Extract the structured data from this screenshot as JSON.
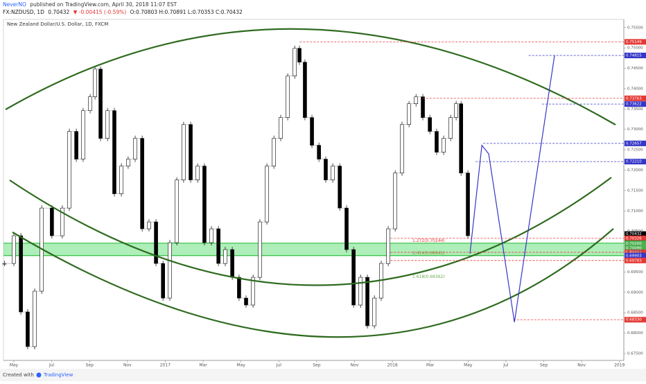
{
  "header": {
    "author": "NeverNO",
    "published": "published on TradingView.com, April 30, 2018 11:07 EST",
    "symbol": "FX:NZDUSD, 1D",
    "last": "0.70432",
    "change": "▼ -0.00415 (-0.59%)",
    "ohlc": "O:0.70803 H:0.70891 L:0.70353 C:0.70432"
  },
  "footer": {
    "created": "Created with",
    "brand": "TradingView"
  },
  "chart_data": {
    "type": "candlestick",
    "title": "New Zealand Dollar/U.S. Dollar, 1D, FXCM",
    "xlim": [
      -0.55,
      32.23
    ],
    "ylim": [
      0.6733,
      0.757
    ],
    "xticks": [
      {
        "value": 0,
        "label": "May"
      },
      {
        "value": 2,
        "label": "Jul"
      },
      {
        "value": 4,
        "label": "Sep"
      },
      {
        "value": 6,
        "label": "Nov"
      },
      {
        "value": 8,
        "label": "2017"
      },
      {
        "value": 10,
        "label": "Mar"
      },
      {
        "value": 12,
        "label": "May"
      },
      {
        "value": 14,
        "label": "Jul"
      },
      {
        "value": 16,
        "label": "Sep"
      },
      {
        "value": 18,
        "label": "Nov"
      },
      {
        "value": 20,
        "label": "2018"
      },
      {
        "value": 22,
        "label": "Mar"
      },
      {
        "value": 24,
        "label": "May"
      },
      {
        "value": 26,
        "label": "Jul"
      },
      {
        "value": 28,
        "label": "Sep"
      },
      {
        "value": 30,
        "label": "Nov"
      },
      {
        "value": 32,
        "label": "2019"
      }
    ],
    "yticks": [
      {
        "value": 0.675,
        "label": "0.67500"
      },
      {
        "value": 0.68,
        "label": "0.68000"
      },
      {
        "value": 0.685,
        "label": "0.68500"
      },
      {
        "value": 0.69,
        "label": "0.69000"
      },
      {
        "value": 0.695,
        "label": "0.69500"
      },
      {
        "value": 0.7,
        "label": "0.70000"
      },
      {
        "value": 0.705,
        "label": "0.70500"
      },
      {
        "value": 0.71,
        "label": "0.71000"
      },
      {
        "value": 0.715,
        "label": "0.71500"
      },
      {
        "value": 0.72,
        "label": "0.72000"
      },
      {
        "value": 0.725,
        "label": "0.72500"
      },
      {
        "value": 0.73,
        "label": "0.73000"
      },
      {
        "value": 0.735,
        "label": "0.73500"
      },
      {
        "value": 0.74,
        "label": "0.74000"
      },
      {
        "value": 0.745,
        "label": "0.74500"
      },
      {
        "value": 0.75,
        "label": "0.75000"
      },
      {
        "value": 0.755,
        "label": "0.75500"
      }
    ],
    "series": [
      {
        "name": "NZDUSD",
        "color": "#000000",
        "x": [
          -0.5,
          0,
          0.37,
          0.73,
          1.1,
          1.47,
          2.01,
          2.56,
          2.93,
          3.3,
          3.66,
          4.03,
          4.29,
          4.58,
          4.95,
          5.31,
          5.68,
          6.04,
          6.41,
          6.78,
          7.14,
          7.51,
          7.88,
          8.24,
          8.61,
          8.97,
          9.34,
          9.71,
          10.07,
          10.44,
          10.81,
          11.17,
          11.54,
          11.9,
          12.27,
          12.64,
          13,
          13.37,
          13.74,
          14.1,
          14.47,
          14.84,
          15.09,
          15.38,
          15.75,
          16.12,
          16.48,
          16.85,
          17.22,
          17.58,
          17.95,
          18.32,
          18.68,
          19.05,
          19.41,
          19.78,
          20.15,
          20.51,
          20.88,
          21.25,
          21.61,
          21.98,
          22.34,
          22.71,
          23.08,
          23.37,
          23.63,
          23.99
        ],
        "values": [
          0.6971,
          0.7039,
          0.6852,
          0.6767,
          0.6903,
          0.7107,
          0.7039,
          0.7107,
          0.7295,
          0.7227,
          0.7346,
          0.738,
          0.7448,
          0.7278,
          0.7346,
          0.7142,
          0.721,
          0.7227,
          0.7278,
          0.7056,
          0.7073,
          0.6971,
          0.6886,
          0.7022,
          0.7176,
          0.7312,
          0.7176,
          0.721,
          0.7022,
          0.7056,
          0.6971,
          0.7005,
          0.6937,
          0.6886,
          0.6869,
          0.6937,
          0.7073,
          0.721,
          0.7278,
          0.7329,
          0.7431,
          0.7499,
          0.7465,
          0.7329,
          0.7261,
          0.7227,
          0.7176,
          0.721,
          0.7107,
          0.7005,
          0.6869,
          0.6937,
          0.6818,
          0.6886,
          0.6971,
          0.7056,
          0.7193,
          0.7312,
          0.7363,
          0.738,
          0.7329,
          0.7295,
          0.7244,
          0.7278,
          0.7329,
          0.7363,
          0.7193,
          0.7039
        ]
      }
    ],
    "projection": {
      "color": "#3535c8",
      "x": [
        24.1,
        24.73,
        25.09,
        26.45,
        28.57
      ],
      "values": [
        0.6995,
        0.7261,
        0.724,
        0.6827,
        0.7482
      ]
    },
    "zone": {
      "color": "#4cd964",
      "values": [
        0.70208,
        0.69903
      ]
    },
    "levels": [
      {
        "value": 0.75149,
        "color": "#e53935",
        "from": 15.1
      },
      {
        "value": 0.74815,
        "color": "#3535c8",
        "from": 27.2
      },
      {
        "value": 0.73763,
        "color": "#e53935",
        "from": 21.6
      },
      {
        "value": 0.73622,
        "color": "#3535c8",
        "from": 27.9
      },
      {
        "value": 0.72657,
        "color": "#3535c8",
        "from": 24.8
      },
      {
        "value": 0.7221,
        "label": "0.72210",
        "color": "#3535c8",
        "from": 24.4
      },
      {
        "value": 0.70432,
        "color": "#000000"
      },
      {
        "value": 0.70326,
        "color": "#e53935",
        "from": 19.9
      },
      {
        "value": 0.70208,
        "color": "#1b7a2a"
      },
      {
        "value": 0.702,
        "label": "0.70200",
        "color": "#4caf50"
      },
      {
        "value": 0.7009,
        "label": "0.70090",
        "color": "#4caf50"
      },
      {
        "value": 0.69983,
        "color": "#e53935",
        "from": 19.9
      },
      {
        "value": 0.69903,
        "color": "#3535c8"
      },
      {
        "value": 0.69783,
        "color": "#e53935",
        "from": 19.9
      },
      {
        "value": 0.6833,
        "label": "0.68330",
        "color": "#e53935",
        "from": 26.4
      }
    ],
    "fibs": [
      {
        "label": "1.272(0.70244)",
        "value": 0.70244,
        "color": "#e53935"
      },
      {
        "label": "1.414(0.69941)",
        "value": 0.69941,
        "color": "#8a8a3a"
      },
      {
        "label": "1.618(0.69362)",
        "value": 0.69362,
        "color": "#6aa84f"
      }
    ]
  }
}
